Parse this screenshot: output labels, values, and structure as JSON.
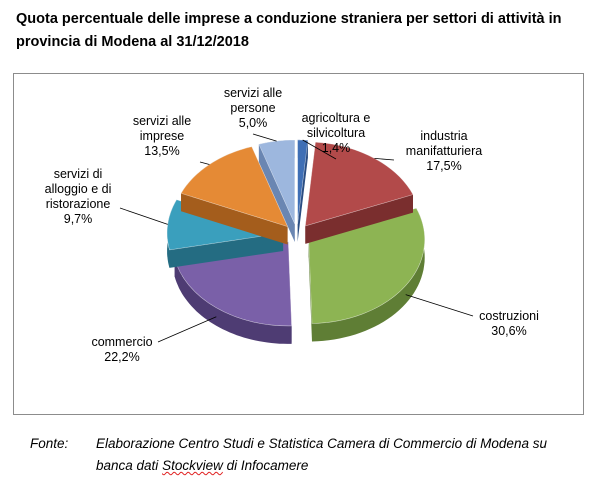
{
  "title_line1": "Quota percentuale delle imprese a conduzione straniera per settori di attività in",
  "title_line2": "provincia di Modena al 31/12/2018",
  "footer": {
    "label": "Fonte:",
    "line1": "Elaborazione Centro Studi e Statistica Camera di Commercio di Modena su",
    "line2_prefix": "banca dati ",
    "line2_link": "Stockview",
    "line2_suffix": " di Infocamere"
  },
  "chart_data": {
    "type": "pie",
    "style": "3d-exploded",
    "title": "Quota percentuale delle imprese a conduzione straniera per settori di attività in provincia di Modena al 31/12/2018",
    "unit": "%",
    "series": [
      {
        "name": "",
        "values": [
          {
            "label_lines": [
              "agricoltura e",
              "silvicoltura"
            ],
            "value": 1.4,
            "value_label": "1,4%",
            "color": "#3f6fb5",
            "side": "#2a4d82"
          },
          {
            "label_lines": [
              "industria",
              "manifatturiera"
            ],
            "value": 17.5,
            "value_label": "17,5%",
            "color": "#b24a4a",
            "side": "#7a2e2e"
          },
          {
            "label_lines": [
              "costruzioni"
            ],
            "value": 30.6,
            "value_label": "30,6%",
            "color": "#8db453",
            "side": "#5f7e35"
          },
          {
            "label_lines": [
              "commercio"
            ],
            "value": 22.2,
            "value_label": "22,2%",
            "color": "#7a60a8",
            "side": "#4e3c73"
          },
          {
            "label_lines": [
              "servizi di",
              "alloggio e di",
              "ristorazione"
            ],
            "value": 9.7,
            "value_label": "9,7%",
            "color": "#3a9fbd",
            "side": "#246c82"
          },
          {
            "label_lines": [
              "servizi alle",
              "imprese"
            ],
            "value": 13.5,
            "value_label": "13,5%",
            "color": "#e58a35",
            "side": "#a45d1c"
          },
          {
            "label_lines": [
              "servizi alle",
              "persone"
            ],
            "value": 5.0,
            "value_label": "5,0%",
            "color": "#9db7de",
            "side": "#6a86b2"
          }
        ]
      }
    ]
  }
}
